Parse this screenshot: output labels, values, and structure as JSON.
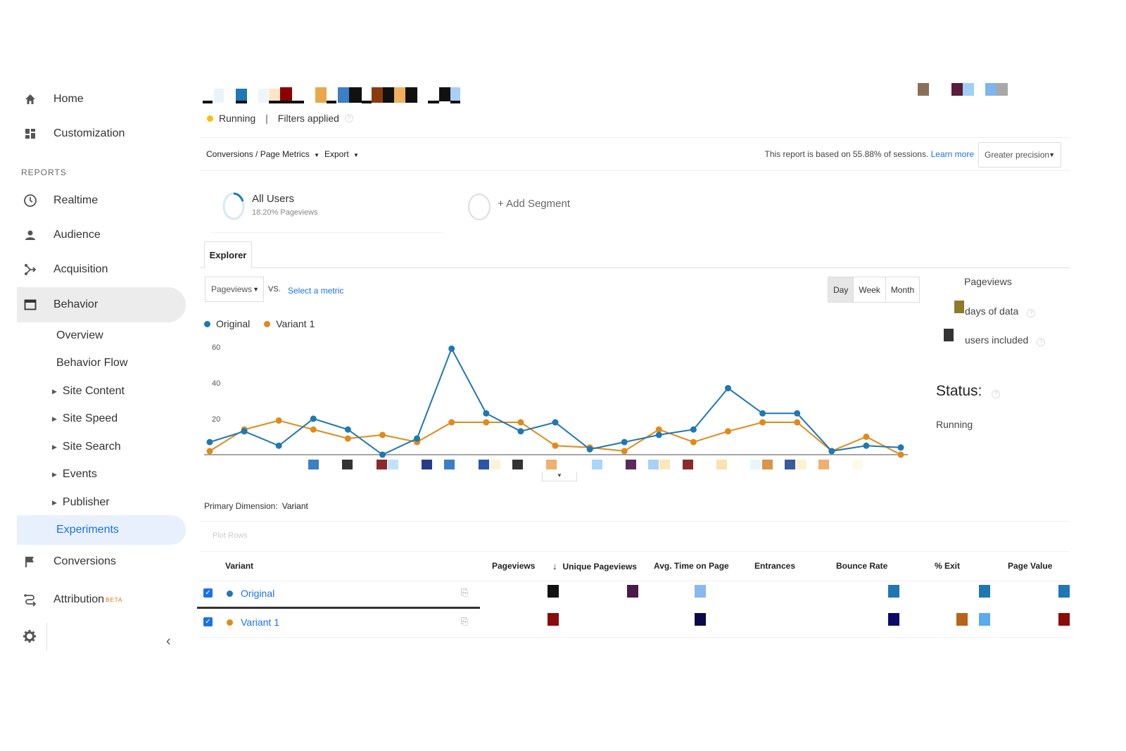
{
  "sidebar": {
    "home": "Home",
    "customization": "Customization",
    "reports_label": "REPORTS",
    "realtime": "Realtime",
    "audience": "Audience",
    "acquisition": "Acquisition",
    "behavior": "Behavior",
    "behavior_items": [
      "Overview",
      "Behavior Flow",
      "Site Content",
      "Site Speed",
      "Site Search",
      "Events",
      "Publisher",
      "Experiments"
    ],
    "conversions": "Conversions",
    "attribution": "Attribution",
    "attribution_badge": "BETA"
  },
  "header": {
    "status": "Running",
    "filters": "Filters applied"
  },
  "toolbar": {
    "breadcrumb": "Conversions / Page Metrics",
    "export": "Export",
    "note": "This report is based on 55.88% of sessions.",
    "learn_more": "Learn more",
    "precision": "Greater precision"
  },
  "segments": {
    "all_users": "All Users",
    "all_users_sub": "18.20% Pageviews",
    "add_segment": "+ Add Segment"
  },
  "explorer": {
    "tab": "Explorer",
    "metric": "Pageviews",
    "vs": "VS.",
    "select_metric": "Select a metric",
    "periods": [
      "Day",
      "Week",
      "Month"
    ],
    "active_period": "Day"
  },
  "right_panel": {
    "title": "Pageviews",
    "days_of_data": "days of data",
    "users_included": "users included",
    "status_label": "Status:",
    "status_value": "Running"
  },
  "chart_data": {
    "type": "line",
    "y_ticks": [
      "60",
      "40",
      "20"
    ],
    "ylim": [
      0,
      65
    ],
    "series": [
      {
        "name": "Original",
        "color": "#1f77b4",
        "values": [
          7,
          13,
          5,
          20,
          14,
          0,
          9,
          59,
          23,
          13,
          18,
          3,
          7,
          11,
          14,
          37,
          23,
          23,
          2,
          5,
          4
        ]
      },
      {
        "name": "Variant 1",
        "color": "#e08a1a",
        "values": [
          2,
          14,
          19,
          14,
          9,
          11,
          7,
          18,
          18,
          18,
          5,
          4,
          2,
          14,
          7,
          13,
          18,
          18,
          2,
          10,
          0
        ]
      }
    ]
  },
  "table": {
    "primary_dimension_label": "Primary Dimension:",
    "primary_dimension_value": "Variant",
    "plot_rows": "Plot Rows",
    "headers": [
      "Variant",
      "Pageviews",
      "Unique Pageviews",
      "Avg. Time on Page",
      "Entrances",
      "Bounce Rate",
      "% Exit",
      "Page Value"
    ],
    "sort_indicator": "↓",
    "rows": [
      {
        "variant": "Original",
        "color": "#1f77b4"
      },
      {
        "variant": "Variant 1",
        "color": "#e08a1a"
      }
    ]
  }
}
